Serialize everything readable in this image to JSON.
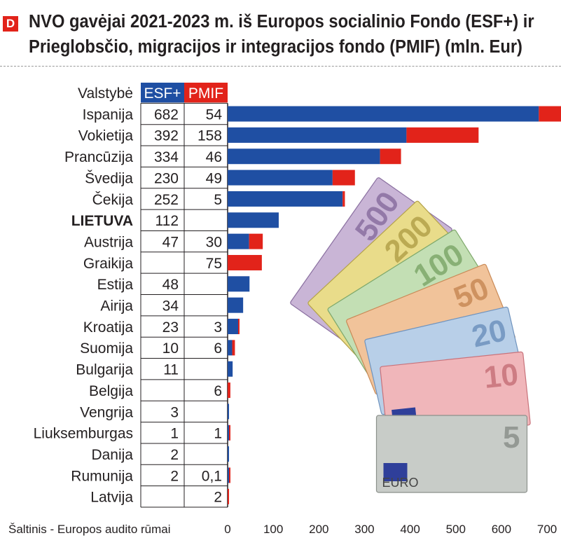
{
  "header": {
    "badge": "D",
    "title_line1": "NVO gavėjai 2021-2023 m. iš Europos socialinio Fondo (ESF+) ir",
    "title_line2": "Prieglobsčio, migracijos ir integracijos fondo (PMIF) (mln. Eur)"
  },
  "source": "Šaltinis - Europos audito rūmai",
  "colors": {
    "esf": "#1f4fa3",
    "pmif": "#e2231a",
    "text": "#231f20",
    "grid": "#231f20"
  },
  "decoration": "euro-banknotes",
  "banknote_labels": [
    "500",
    "200",
    "100",
    "50",
    "20",
    "10",
    "5",
    "EURO"
  ],
  "chart_data": {
    "type": "bar",
    "orientation": "horizontal",
    "stacked": true,
    "category_header": "Valstybė",
    "categories": [
      "Ispanija",
      "Vokietija",
      "Prancūzija",
      "Švedija",
      "Čekija",
      "LIETUVA",
      "Austrija",
      "Graikija",
      "Estija",
      "Airija",
      "Kroatija",
      "Suomija",
      "Bulgarija",
      "Belgija",
      "Vengrija",
      "Liuksemburgas",
      "Danija",
      "Rumunija",
      "Latvija"
    ],
    "highlight_category": "LIETUVA",
    "series": [
      {
        "name": "ESF+",
        "values": [
          682,
          392,
          334,
          230,
          252,
          112,
          47,
          null,
          48,
          34,
          23,
          10,
          11,
          null,
          3,
          1,
          2,
          2,
          null
        ],
        "labels": [
          "682",
          "392",
          "334",
          "230",
          "252",
          "112",
          "47",
          "",
          "48",
          "34",
          "23",
          "10",
          "11",
          "",
          "3",
          "1",
          "2",
          "2",
          ""
        ]
      },
      {
        "name": "PMIF",
        "values": [
          54,
          158,
          46,
          49,
          5,
          null,
          30,
          75,
          null,
          null,
          3,
          6,
          null,
          6,
          null,
          1,
          null,
          0.1,
          2
        ],
        "labels": [
          "54",
          "158",
          "46",
          "49",
          "5",
          "",
          "30",
          "75",
          "",
          "",
          "3",
          "6",
          "",
          "6",
          "",
          "1",
          "",
          "0,1",
          "2"
        ]
      }
    ],
    "xlim": [
      0,
      750
    ],
    "xticks": [
      0,
      100,
      200,
      300,
      400,
      500,
      600,
      700
    ],
    "xtick_labels": [
      "0",
      "100",
      "200",
      "300",
      "400",
      "500",
      "600",
      "700"
    ],
    "grid": false,
    "legend": "table-header"
  }
}
